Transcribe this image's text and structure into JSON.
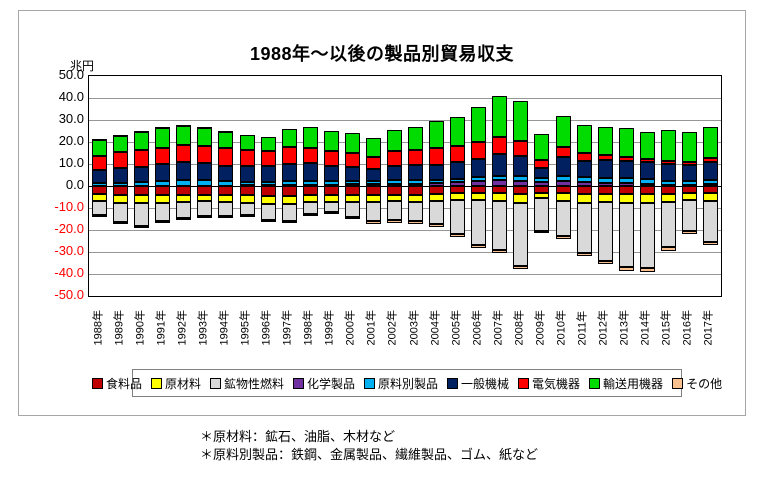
{
  "footnotes": [
    "＊原材料：鉱石、油脂、木材など",
    "＊原料別製品：鉄鋼、金属製品、繊維製品、ゴム、紙など"
  ],
  "chart_data": {
    "type": "bar",
    "stacked": true,
    "title": "1988年～以後の製品別貿易収支",
    "ylabel": "兆円",
    "ylim": [
      -50,
      50
    ],
    "ytick_step": 10,
    "ytick_labels": [
      "50.0",
      "40.0",
      "30.0",
      "20.0",
      "10.0",
      "0.0",
      "-10.0",
      "-20.0",
      "-30.0",
      "-40.0",
      "-50.0"
    ],
    "grid": true,
    "legend_position": "bottom",
    "categories": [
      "1988年",
      "1989年",
      "1990年",
      "1991年",
      "1992年",
      "1993年",
      "1994年",
      "1995年",
      "1996年",
      "1997年",
      "1998年",
      "1999年",
      "2000年",
      "2001年",
      "2002年",
      "2003年",
      "2004年",
      "2005年",
      "2006年",
      "2007年",
      "2008年",
      "2009年",
      "2010年",
      "2011年",
      "2012年",
      "2013年",
      "2014年",
      "2015年",
      "2016年",
      "2017年"
    ],
    "series": [
      {
        "key": "food-products",
        "name": "食料品",
        "color": "#C00000",
        "values": [
          -3.6,
          -4.1,
          -4.1,
          -4.1,
          -3.9,
          -3.9,
          -4.1,
          -4.1,
          -4.5,
          -4.5,
          -4.1,
          -4.1,
          -4.1,
          -4.1,
          -3.9,
          -3.9,
          -3.6,
          -3.4,
          -3.3,
          -3.3,
          -3.6,
          -3.0,
          -3.3,
          -3.6,
          -3.6,
          -3.6,
          -3.6,
          -3.6,
          -3.3,
          -3.3
        ]
      },
      {
        "key": "raw-materials",
        "name": "原材料",
        "color": "#FFFF00",
        "values": [
          -3.2,
          -3.6,
          -3.6,
          -3.4,
          -3.2,
          -3.0,
          -3.2,
          -3.6,
          -3.7,
          -3.7,
          -3.2,
          -3.2,
          -3.2,
          -3.2,
          -3.1,
          -3.2,
          -3.2,
          -3.0,
          -3.1,
          -3.5,
          -4.1,
          -2.5,
          -3.5,
          -4.1,
          -3.7,
          -4.1,
          -4.1,
          -3.7,
          -3.1,
          -3.5
        ]
      },
      {
        "key": "mineral-fuels",
        "name": "鉱物性燃料",
        "color": "#D9D9D9",
        "values": [
          -6.6,
          -8.7,
          -10.5,
          -8.5,
          -7.4,
          -6.8,
          -6.4,
          -5.5,
          -7.3,
          -7.7,
          -5.4,
          -4.5,
          -6.8,
          -8.6,
          -8.5,
          -9.0,
          -10.5,
          -15.4,
          -20.4,
          -22.3,
          -28.7,
          -15.0,
          -15.9,
          -22.9,
          -26.8,
          -29.1,
          -29.6,
          -20.4,
          -14.1,
          -18.7
        ]
      },
      {
        "key": "chemicals",
        "name": "化学製品",
        "color": "#7030A0",
        "values": [
          -0.5,
          -0.9,
          -0.9,
          -0.9,
          -0.5,
          -0.5,
          -0.3,
          0.3,
          0.3,
          0.5,
          0.5,
          0.5,
          0.7,
          0.7,
          0.9,
          1.1,
          1.4,
          1.8,
          2.3,
          2.7,
          2.3,
          1.8,
          2.3,
          1.8,
          1.4,
          1.2,
          1.0,
          0.6,
          0.5,
          0.7
        ]
      },
      {
        "key": "products-by-material",
        "name": "原料別製品",
        "color": "#00B0F0",
        "values": [
          1.2,
          1.5,
          1.8,
          2.3,
          2.7,
          2.6,
          2.3,
          1.4,
          1.5,
          1.8,
          1.9,
          1.6,
          1.6,
          1.4,
          1.7,
          1.6,
          1.3,
          1.4,
          1.8,
          1.8,
          2.2,
          1.8,
          2.2,
          2.3,
          2.2,
          2.3,
          2.0,
          1.5,
          1.6,
          2.0
        ]
      },
      {
        "key": "general-machinery",
        "name": "一般機械",
        "color": "#002060",
        "values": [
          6.1,
          6.7,
          7.0,
          7.7,
          8.2,
          7.9,
          6.8,
          7.2,
          7.3,
          7.7,
          8.1,
          7.0,
          6.3,
          5.6,
          6.5,
          6.7,
          6.8,
          7.7,
          8.2,
          10.0,
          9.1,
          4.6,
          8.7,
          7.3,
          8.2,
          7.9,
          8.0,
          7.8,
          7.3,
          8.2
        ]
      },
      {
        "key": "electrical-machinery",
        "name": "電気機器",
        "color": "#FF0000",
        "values": [
          6.3,
          7.3,
          7.6,
          7.3,
          7.7,
          7.7,
          8.2,
          7.3,
          6.8,
          7.7,
          6.8,
          6.8,
          6.4,
          5.5,
          6.8,
          7.0,
          7.8,
          7.3,
          7.7,
          7.8,
          6.9,
          3.6,
          4.5,
          3.6,
          2.3,
          1.8,
          1.3,
          1.5,
          1.5,
          1.8
        ]
      },
      {
        "key": "transport-equipment",
        "name": "輸送用機器",
        "color": "#00DC00",
        "values": [
          7.3,
          7.2,
          8.0,
          9.1,
          8.7,
          8.2,
          7.7,
          6.8,
          6.4,
          8.2,
          9.5,
          9.1,
          9.1,
          8.6,
          9.6,
          10.4,
          12.2,
          13.2,
          15.9,
          18.6,
          18.1,
          11.8,
          14.1,
          12.7,
          12.7,
          13.2,
          12.3,
          14.1,
          13.6,
          14.1
        ]
      },
      {
        "key": "others",
        "name": "その他",
        "color": "#FAC090",
        "values": [
          0.4,
          0.4,
          0.4,
          0.3,
          0.4,
          0.3,
          0.2,
          -0.9,
          -0.9,
          -0.9,
          -0.5,
          -0.3,
          -0.5,
          -1.4,
          -1.3,
          -1.2,
          -1.4,
          -1.4,
          -1.4,
          -1.4,
          -1.3,
          -0.9,
          -1.4,
          -1.4,
          -1.4,
          -1.8,
          -1.8,
          -1.8,
          -1.3,
          -1.3
        ]
      }
    ]
  }
}
